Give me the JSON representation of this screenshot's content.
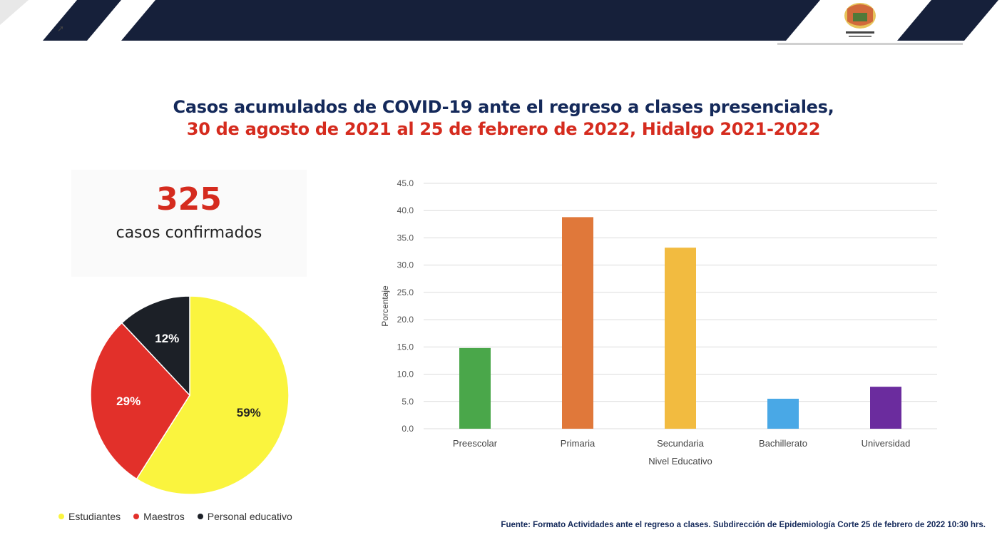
{
  "header": {
    "cursor_icon": "mouse-cursor-icon",
    "logo_icon": "state-coat-of-arms-icon"
  },
  "title": {
    "line1": "Casos acumulados de COVID-19 ante el regreso a clases presenciales,",
    "line2": "30 de agosto de 2021 al 25 de febrero de 2022, Hidalgo 2021-2022",
    "line1_color": "#14295a",
    "line2_color": "#d52b1e"
  },
  "total": {
    "number": "325",
    "label": "casos confirmados"
  },
  "source": "Fuente: Formato Actividades ante el regreso a clases. Subdirección de Epidemiología Corte 25 de febrero de 2022  10:30  hrs.",
  "chart_data": [
    {
      "type": "pie",
      "categories": [
        "Estudiantes",
        "Maestros",
        "Personal educativo"
      ],
      "values": [
        59,
        29,
        12
      ],
      "labels": [
        "59%",
        "29%",
        "12%"
      ],
      "colors": [
        "#faf43e",
        "#e2302a",
        "#1c2027"
      ],
      "label_colors": [
        "#222222",
        "#ffffff",
        "#ffffff"
      ],
      "legend_position": "bottom"
    },
    {
      "type": "bar",
      "categories": [
        "Preescolar",
        "Primaria",
        "Secundaria",
        "Bachillerato",
        "Universidad"
      ],
      "values": [
        14.8,
        38.8,
        33.2,
        5.5,
        7.7
      ],
      "colors": [
        "#4aa74a",
        "#e0783a",
        "#f2bb40",
        "#49a8e6",
        "#6b2c9e"
      ],
      "xlabel": "Nivel Educativo",
      "ylabel": "Porcentaje",
      "ylim": [
        0,
        45
      ],
      "yticks": [
        "0.0",
        "5.0",
        "10.0",
        "15.0",
        "20.0",
        "25.0",
        "30.0",
        "35.0",
        "40.0",
        "45.0"
      ],
      "grid": true
    }
  ]
}
